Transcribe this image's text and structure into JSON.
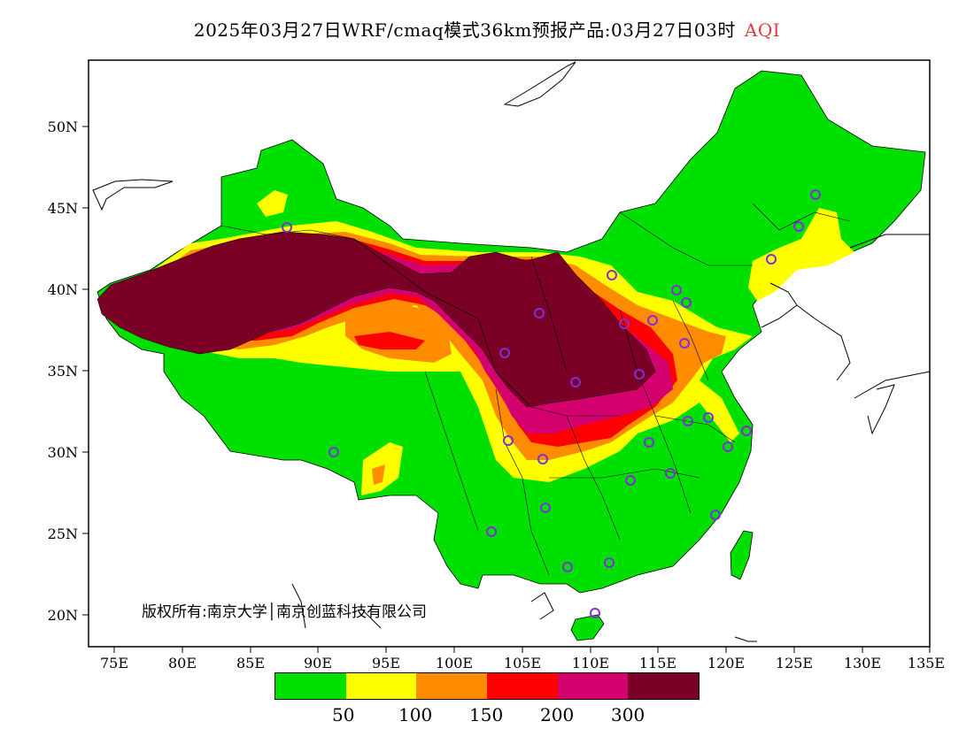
{
  "title": {
    "main": "2025年03月27日WRF/cmaq模式36km预报产品:03月27日03时",
    "pollutant": "AQI",
    "pollutant_color": "#e33b3b"
  },
  "copyright": "版权所有:南京大学│南京创蓝科技有限公司",
  "axes": {
    "lat_ticks": [
      "50N",
      "45N",
      "40N",
      "35N",
      "30N",
      "25N",
      "20N"
    ],
    "lon_ticks": [
      "75E",
      "80E",
      "85E",
      "90E",
      "95E",
      "100E",
      "105E",
      "110E",
      "115E",
      "120E",
      "125E",
      "130E",
      "135E"
    ]
  },
  "legend": {
    "colors": [
      "#00e000",
      "#ffff00",
      "#ff8c00",
      "#ff0000",
      "#d4006e",
      "#7a0025"
    ],
    "labels": [
      "50",
      "100",
      "150",
      "200",
      "300"
    ]
  },
  "monitor_markers": "circle"
}
